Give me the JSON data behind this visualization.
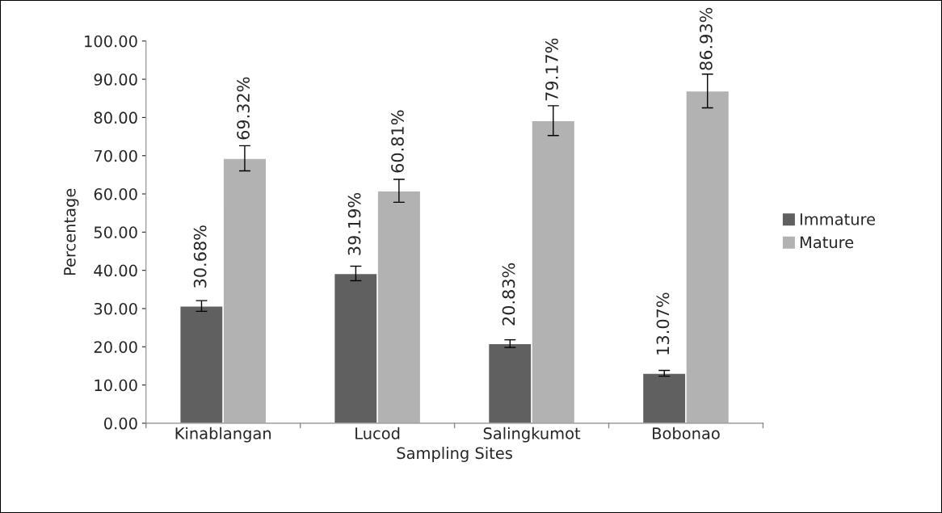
{
  "chart_data": {
    "type": "bar",
    "xlabel": "Sampling Sites",
    "ylabel": "Percentage",
    "categories": [
      "Kinablangan",
      "Lucod",
      "Salingkumot",
      "Bobonao"
    ],
    "series": [
      {
        "name": "Immature",
        "color": "#606060",
        "values": [
          30.68,
          39.19,
          20.83,
          13.07
        ],
        "errors": [
          1.4,
          1.9,
          1.0,
          0.75
        ],
        "value_labels": [
          "30.68%",
          "39.19%",
          "20.83%",
          "13.07%"
        ]
      },
      {
        "name": "Mature",
        "color": "#b2b2b2",
        "values": [
          69.32,
          60.81,
          79.17,
          86.93
        ],
        "errors": [
          3.3,
          3.0,
          3.9,
          4.4
        ],
        "value_labels": [
          "69.32%",
          "60.81%",
          "79.17%",
          "86.93%"
        ]
      }
    ],
    "ylim": [
      0,
      100
    ],
    "yticks": [
      {
        "value": 0,
        "label": "0.00"
      },
      {
        "value": 10,
        "label": "10.00"
      },
      {
        "value": 20,
        "label": "20.00"
      },
      {
        "value": 30,
        "label": "30.00"
      },
      {
        "value": 40,
        "label": "40.00"
      },
      {
        "value": 50,
        "label": "50.00"
      },
      {
        "value": 60,
        "label": "60.00"
      },
      {
        "value": 70,
        "label": "70.00"
      },
      {
        "value": 80,
        "label": "80.00"
      },
      {
        "value": 90,
        "label": "90.00"
      },
      {
        "value": 100,
        "label": "100.00"
      }
    ],
    "grid": false,
    "legend": "right"
  }
}
